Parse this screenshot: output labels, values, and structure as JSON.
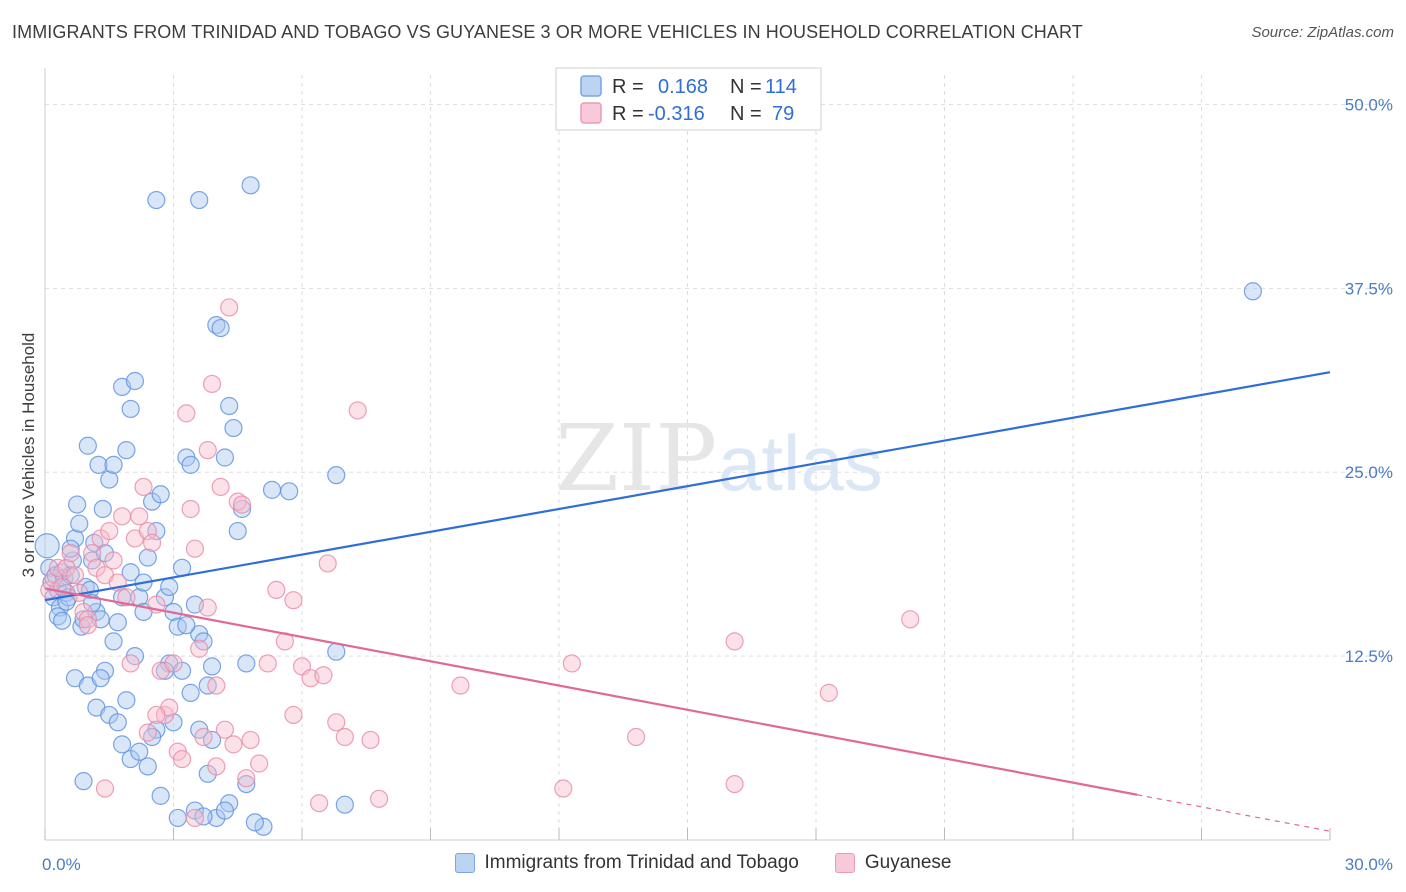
{
  "title": "IMMIGRANTS FROM TRINIDAD AND TOBAGO VS GUYANESE 3 OR MORE VEHICLES IN HOUSEHOLD CORRELATION CHART",
  "source": "Source: ZipAtlas.com",
  "colors": {
    "blue": "#5b8ee0",
    "blue_fill": "#a9c7ef",
    "blue_line": "#2f6ed8",
    "pink": "#e88aa8",
    "pink_fill": "#f6bccd",
    "pink_line": "#e06a95",
    "grid": "#dddddd",
    "tick": "#4a7cc7"
  },
  "legend": {
    "r_label": "R =",
    "n_label": "N =",
    "series1": {
      "r": "0.168",
      "n": "114"
    },
    "series2": {
      "r": "-0.316",
      "n": "79"
    }
  },
  "chart_data": {
    "type": "scatter",
    "title": "IMMIGRANTS FROM TRINIDAD AND TOBAGO VS GUYANESE 3 OR MORE VEHICLES IN HOUSEHOLD CORRELATION CHART",
    "xlabel": "",
    "ylabel": "3 or more Vehicles in Household",
    "xlim": [
      0,
      30
    ],
    "ylim": [
      0,
      52
    ],
    "x_tick_labels": [
      "0.0%",
      "30.0%"
    ],
    "y_ticks": [
      12.5,
      25.0,
      37.5,
      50.0
    ],
    "y_tick_labels": [
      "12.5%",
      "25.0%",
      "37.5%",
      "50.0%"
    ],
    "grid": true,
    "legend_position": "top-center",
    "watermark": "ZIPatlas",
    "series": [
      {
        "name": "Immigrants from Trinidad and Tobago",
        "color": "#5b8ee0",
        "trend": {
          "x": [
            0,
            30
          ],
          "y": [
            16.3,
            31.8
          ],
          "dashed_from": null
        },
        "points": [
          [
            0.05,
            20
          ],
          [
            0.1,
            18.5
          ],
          [
            0.15,
            17.5
          ],
          [
            0.2,
            16.5
          ],
          [
            0.25,
            18
          ],
          [
            0.3,
            17
          ],
          [
            0.35,
            15.8
          ],
          [
            0.4,
            18.2
          ],
          [
            0.45,
            17.8
          ],
          [
            0.5,
            16.8
          ],
          [
            0.55,
            16.5
          ],
          [
            0.6,
            18
          ],
          [
            0.65,
            19
          ],
          [
            0.7,
            20.5
          ],
          [
            0.75,
            22.8
          ],
          [
            0.8,
            21.5
          ],
          [
            0.85,
            14.5
          ],
          [
            0.9,
            15
          ],
          [
            0.95,
            17.2
          ],
          [
            1.0,
            26.8
          ],
          [
            1.05,
            17
          ],
          [
            1.1,
            19
          ],
          [
            1.15,
            20.2
          ],
          [
            1.2,
            15.5
          ],
          [
            1.25,
            25.5
          ],
          [
            1.3,
            15
          ],
          [
            1.35,
            22.5
          ],
          [
            1.4,
            19.5
          ],
          [
            1.5,
            24.5
          ],
          [
            1.6,
            25.5
          ],
          [
            1.7,
            14.8
          ],
          [
            1.8,
            30.8
          ],
          [
            1.9,
            26.5
          ],
          [
            2.0,
            29.3
          ],
          [
            2.1,
            31.2
          ],
          [
            2.2,
            16.5
          ],
          [
            2.3,
            15.5
          ],
          [
            2.4,
            19.2
          ],
          [
            2.5,
            23
          ],
          [
            2.6,
            21
          ],
          [
            2.7,
            23.5
          ],
          [
            2.8,
            16.5
          ],
          [
            2.9,
            12
          ],
          [
            3.0,
            15.5
          ],
          [
            3.1,
            14.5
          ],
          [
            3.2,
            18.5
          ],
          [
            3.3,
            26
          ],
          [
            3.4,
            25.5
          ],
          [
            3.5,
            16
          ],
          [
            3.6,
            14
          ],
          [
            3.7,
            13.5
          ],
          [
            3.8,
            10.5
          ],
          [
            3.9,
            11.8
          ],
          [
            4.0,
            35
          ],
          [
            4.1,
            34.8
          ],
          [
            4.2,
            26
          ],
          [
            4.3,
            29.5
          ],
          [
            4.4,
            28
          ],
          [
            4.5,
            21
          ],
          [
            4.6,
            22.5
          ],
          [
            4.7,
            12
          ],
          [
            0.7,
            11
          ],
          [
            1.0,
            10.5
          ],
          [
            1.2,
            9
          ],
          [
            1.4,
            11.5
          ],
          [
            1.5,
            8.5
          ],
          [
            1.7,
            8
          ],
          [
            1.8,
            6.5
          ],
          [
            2.0,
            5.5
          ],
          [
            2.2,
            6
          ],
          [
            2.4,
            5
          ],
          [
            2.6,
            7.5
          ],
          [
            2.8,
            11.5
          ],
          [
            3.0,
            8
          ],
          [
            3.2,
            11.5
          ],
          [
            3.4,
            10
          ],
          [
            3.6,
            7.5
          ],
          [
            3.8,
            4.5
          ],
          [
            4.0,
            1.5
          ],
          [
            4.3,
            2.5
          ],
          [
            0.9,
            4
          ],
          [
            2.6,
            43.5
          ],
          [
            3.6,
            43.5
          ],
          [
            4.8,
            44.5
          ],
          [
            5.3,
            23.8
          ],
          [
            5.7,
            23.7
          ],
          [
            6.8,
            24.8
          ],
          [
            6.8,
            12.8
          ],
          [
            28.2,
            37.3
          ],
          [
            1.8,
            16.5
          ],
          [
            2.0,
            18.2
          ],
          [
            2.3,
            17.5
          ],
          [
            0.3,
            15.2
          ],
          [
            0.5,
            16.2
          ],
          [
            0.6,
            19.8
          ],
          [
            1.6,
            13.5
          ],
          [
            2.5,
            7
          ],
          [
            2.7,
            3
          ],
          [
            3.1,
            1.5
          ],
          [
            3.5,
            2
          ],
          [
            3.7,
            1.6
          ],
          [
            4.2,
            2
          ],
          [
            4.7,
            3.8
          ],
          [
            5.1,
            0.9
          ],
          [
            4.9,
            1.2
          ],
          [
            7.0,
            2.4
          ],
          [
            1.3,
            11
          ],
          [
            1.9,
            9.5
          ],
          [
            2.1,
            12.5
          ],
          [
            3.9,
            6.8
          ],
          [
            2.9,
            17.2
          ],
          [
            3.3,
            14.6
          ],
          [
            0.4,
            14.9
          ],
          [
            1.1,
            16.1
          ]
        ]
      },
      {
        "name": "Guyanese",
        "color": "#e88aa8",
        "trend": {
          "x": [
            0,
            30
          ],
          "y": [
            17.1,
            0.6
          ],
          "dashed_from": 25.5
        },
        "points": [
          [
            0.1,
            17
          ],
          [
            0.2,
            17.8
          ],
          [
            0.3,
            18.5
          ],
          [
            0.4,
            17.2
          ],
          [
            0.5,
            18.5
          ],
          [
            0.6,
            19.5
          ],
          [
            0.7,
            18
          ],
          [
            0.8,
            16.8
          ],
          [
            0.9,
            15.5
          ],
          [
            1.0,
            15
          ],
          [
            1.1,
            19.5
          ],
          [
            1.2,
            18.5
          ],
          [
            1.3,
            20.5
          ],
          [
            1.4,
            18
          ],
          [
            1.5,
            21
          ],
          [
            1.6,
            19
          ],
          [
            1.7,
            17.5
          ],
          [
            1.8,
            22
          ],
          [
            1.9,
            16.5
          ],
          [
            2.0,
            12
          ],
          [
            2.1,
            20.5
          ],
          [
            2.2,
            22
          ],
          [
            2.3,
            24
          ],
          [
            2.4,
            21
          ],
          [
            2.5,
            20.2
          ],
          [
            2.6,
            16
          ],
          [
            2.7,
            11.5
          ],
          [
            2.8,
            8.5
          ],
          [
            2.9,
            9
          ],
          [
            3.0,
            12
          ],
          [
            3.1,
            6
          ],
          [
            3.2,
            5.5
          ],
          [
            3.3,
            29
          ],
          [
            3.4,
            22.5
          ],
          [
            3.5,
            19.8
          ],
          [
            3.6,
            13
          ],
          [
            3.7,
            7
          ],
          [
            3.8,
            26.5
          ],
          [
            3.9,
            31
          ],
          [
            4.0,
            10.5
          ],
          [
            4.1,
            24
          ],
          [
            4.2,
            7.5
          ],
          [
            4.3,
            36.2
          ],
          [
            4.4,
            6.5
          ],
          [
            4.5,
            23
          ],
          [
            4.6,
            22.8
          ],
          [
            4.7,
            4.2
          ],
          [
            4.8,
            6.8
          ],
          [
            5.0,
            5.2
          ],
          [
            5.2,
            12
          ],
          [
            5.4,
            17
          ],
          [
            5.6,
            13.5
          ],
          [
            5.8,
            16.3
          ],
          [
            6.0,
            11.8
          ],
          [
            6.2,
            11
          ],
          [
            6.4,
            2.5
          ],
          [
            6.6,
            18.8
          ],
          [
            6.8,
            8
          ],
          [
            7.0,
            7
          ],
          [
            7.3,
            29.2
          ],
          [
            7.6,
            6.8
          ],
          [
            7.8,
            2.8
          ],
          [
            9.7,
            10.5
          ],
          [
            12.3,
            12
          ],
          [
            12.1,
            3.5
          ],
          [
            13.8,
            7
          ],
          [
            16.1,
            13.5
          ],
          [
            16.1,
            3.8
          ],
          [
            18.3,
            10
          ],
          [
            20.2,
            15
          ],
          [
            1.4,
            3.5
          ],
          [
            2.6,
            8.5
          ],
          [
            3.5,
            1.5
          ],
          [
            4.0,
            5
          ],
          [
            5.8,
            8.5
          ],
          [
            6.5,
            11.2
          ],
          [
            2.4,
            7.3
          ],
          [
            3.8,
            15.8
          ],
          [
            1.0,
            14.6
          ]
        ]
      }
    ]
  },
  "bottom_legend": [
    {
      "label": "Immigrants from Trinidad and Tobago",
      "swatch": "blue"
    },
    {
      "label": "Guyanese",
      "swatch": "pink"
    }
  ]
}
